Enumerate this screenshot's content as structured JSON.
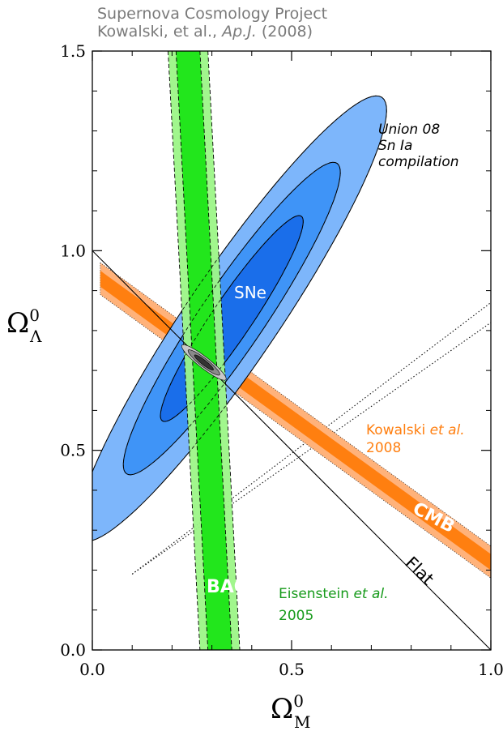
{
  "header": {
    "line1": "Supernova Cosmology Project",
    "line2_prefix": "Kowalski, et al., ",
    "line2_journal": "Ap.J.",
    "line2_suffix": " (2008)"
  },
  "chart_data": {
    "type": "contour",
    "xlabel": "Ω",
    "xlabel_sup": "0",
    "xlabel_sub": "M",
    "ylabel": "Ω",
    "ylabel_sup": "0",
    "ylabel_sub": "Λ",
    "xlim": [
      0.0,
      1.0
    ],
    "ylim": [
      0.0,
      1.5
    ],
    "x_ticks": [
      "0.0",
      "0.5",
      "1.0"
    ],
    "y_ticks": [
      "0.0",
      "0.5",
      "1.0",
      "1.5"
    ],
    "grid": false,
    "colors": {
      "sne_outer": "#7db6fb",
      "sne_mid": "#3f94f7",
      "sne_inner": "#1a6eea",
      "bao_outer": "#9cf587",
      "bao_inner": "#22e61c",
      "cmb_outer": "#ffb27a",
      "cmb_inner": "#ff7f10",
      "combined_outer": "#c8c8c8",
      "combined_mid": "#8a8a8a",
      "combined_inner": "#333333",
      "kowalski_label": "#ff7f10",
      "eisenstein_label": "#169a1a"
    },
    "series": [
      {
        "name": "SNe",
        "kind": "ellipse-contours",
        "center": [
          0.35,
          0.83
        ],
        "major_axis_angle_deg": 55.8,
        "semi_axes": [
          [
            0.67,
            0.115
          ],
          [
            0.47,
            0.08
          ],
          [
            0.31,
            0.05
          ]
        ]
      },
      {
        "name": "BAO",
        "kind": "band",
        "line_top": [
          0.24,
          1.5
        ],
        "line_bottom": [
          0.32,
          0.0
        ],
        "half_widths": [
          0.03,
          0.05
        ]
      },
      {
        "name": "CMB",
        "kind": "band",
        "line_start": [
          0.02,
          0.93
        ],
        "line_end": [
          1.0,
          0.22
        ],
        "half_widths": [
          0.02,
          0.04
        ]
      },
      {
        "name": "Combined",
        "kind": "ellipse-contours",
        "center": [
          0.28,
          0.72
        ],
        "major_axis_angle_deg": -38,
        "semi_axes": [
          [
            0.07,
            0.014
          ],
          [
            0.05,
            0.01
          ],
          [
            0.03,
            0.006
          ]
        ]
      }
    ],
    "reference_lines": [
      {
        "name": "Flat",
        "x1": 0.0,
        "y1": 1.0,
        "x2": 1.0,
        "y2": 0.0,
        "style": "solid"
      },
      {
        "x1": 0.1,
        "y1": 0.19,
        "x2": 1.0,
        "y2": 0.87,
        "style": "dotted"
      },
      {
        "x1": 0.1,
        "y1": 0.19,
        "x2": 1.0,
        "y2": 0.82,
        "style": "dotted"
      }
    ],
    "annotations": {
      "union_line1": "Union 08",
      "union_line2": "Sn Ia",
      "union_line3": "compilation",
      "sne": "SNe",
      "kowalski_name": "Kowalski ",
      "kowalski_etal": "et al.",
      "kowalski_year": "2008",
      "cmb": "CMB",
      "bao": "BAO",
      "eisenstein_name": "Eisenstein ",
      "eisenstein_etal": "et al.",
      "eisenstein_year": "2005",
      "flat": "Flat"
    }
  }
}
